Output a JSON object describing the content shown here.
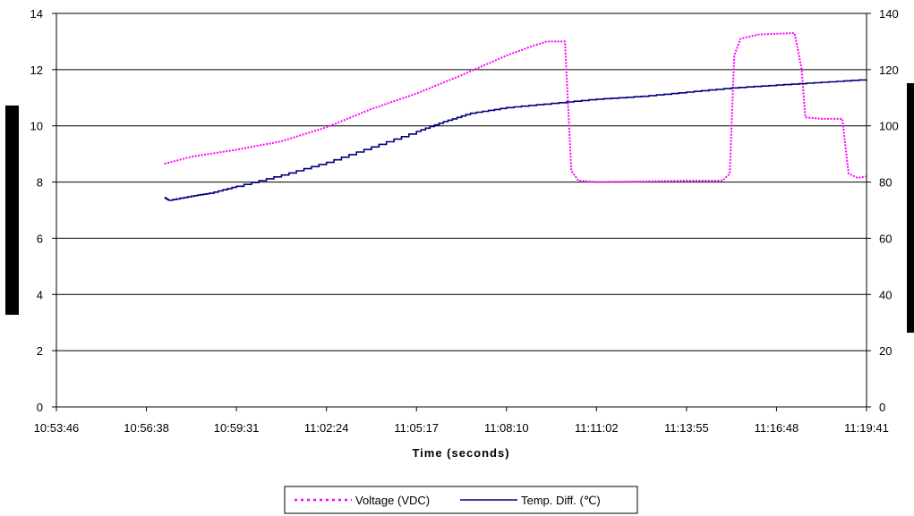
{
  "chart_data": {
    "type": "line",
    "title": "",
    "xlabel": "Time (seconds)",
    "ylabel_left": "",
    "ylabel_right": "",
    "x_ticks": [
      "10:53:46",
      "10:56:38",
      "10:59:31",
      "11:02:24",
      "11:05:17",
      "11:08:10",
      "11:11:02",
      "11:13:55",
      "11:16:48",
      "11:19:41"
    ],
    "x_range": [
      0,
      9
    ],
    "y_left_range": [
      0,
      14
    ],
    "y_left_ticks": [
      "0",
      "2",
      "4",
      "6",
      "8",
      "10",
      "12",
      "14"
    ],
    "y_right_range": [
      0,
      140
    ],
    "y_right_ticks": [
      "0",
      "20",
      "40",
      "60",
      "80",
      "100",
      "120",
      "140"
    ],
    "grid": "horizontal",
    "legend_position": "bottom",
    "series": [
      {
        "name": "Voltage (VDC)",
        "axis": "left",
        "color": "#ff00ff",
        "style": "dotted",
        "points": [
          [
            1.2,
            8.65
          ],
          [
            1.5,
            8.9
          ],
          [
            2.0,
            9.15
          ],
          [
            2.5,
            9.45
          ],
          [
            3.0,
            9.95
          ],
          [
            3.5,
            10.6
          ],
          [
            4.0,
            11.15
          ],
          [
            4.5,
            11.8
          ],
          [
            5.0,
            12.5
          ],
          [
            5.3,
            12.85
          ],
          [
            5.45,
            13.0
          ],
          [
            5.65,
            13.0
          ],
          [
            5.72,
            8.4
          ],
          [
            5.8,
            8.05
          ],
          [
            6.0,
            8.0
          ],
          [
            6.5,
            8.02
          ],
          [
            7.0,
            8.05
          ],
          [
            7.4,
            8.05
          ],
          [
            7.48,
            8.3
          ],
          [
            7.53,
            12.5
          ],
          [
            7.6,
            13.1
          ],
          [
            7.8,
            13.25
          ],
          [
            8.2,
            13.3
          ],
          [
            8.28,
            12.0
          ],
          [
            8.32,
            10.3
          ],
          [
            8.5,
            10.25
          ],
          [
            8.73,
            10.25
          ],
          [
            8.8,
            8.3
          ],
          [
            8.9,
            8.15
          ],
          [
            9.0,
            8.2
          ]
        ]
      },
      {
        "name": "Temp. Diff. (℃)",
        "axis": "right",
        "color": "#000080",
        "style": "solid",
        "points": [
          [
            1.2,
            74.5
          ],
          [
            1.25,
            73.5
          ],
          [
            1.5,
            75
          ],
          [
            1.7,
            76
          ],
          [
            2.0,
            78.5
          ],
          [
            2.5,
            82.5
          ],
          [
            3.0,
            87
          ],
          [
            3.5,
            92.5
          ],
          [
            4.0,
            98
          ],
          [
            4.3,
            101.5
          ],
          [
            4.6,
            104.5
          ],
          [
            5.0,
            106.5
          ],
          [
            5.5,
            108
          ],
          [
            6.0,
            109.5
          ],
          [
            6.5,
            110.5
          ],
          [
            7.0,
            112
          ],
          [
            7.5,
            113.5
          ],
          [
            8.0,
            114.5
          ],
          [
            8.5,
            115.5
          ],
          [
            9.0,
            116.5
          ]
        ]
      }
    ]
  },
  "legend": {
    "voltage_label": "Voltage (VDC)",
    "temp_label": "Temp. Diff. (℃)"
  }
}
